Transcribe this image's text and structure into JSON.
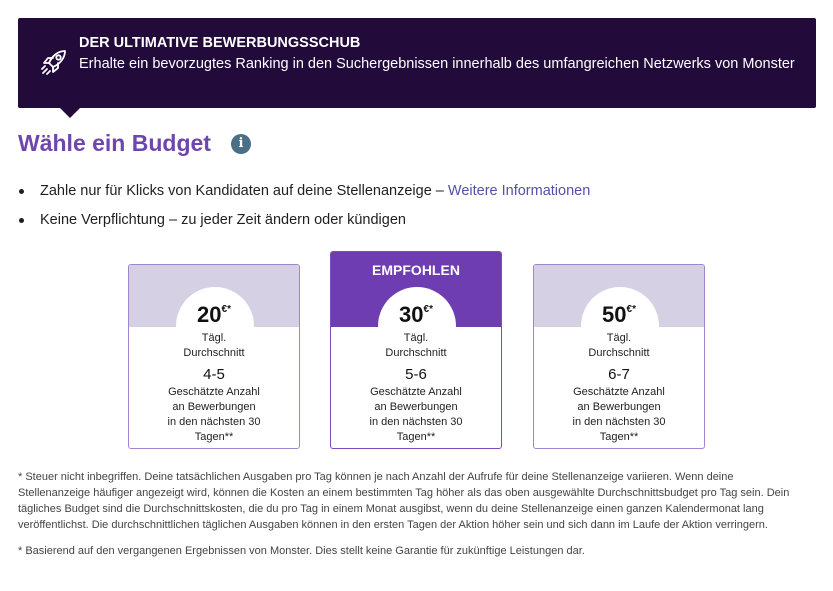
{
  "banner": {
    "icon": "rocket-icon",
    "title": "DER ULTIMATIVE BEWERBUNGSSCHUB",
    "subtitle": "Erhalte ein bevorzugtes Ranking in den Suchergebnissen innerhalb des umfangreichen Netzwerks von Monster",
    "background": "#220a3b"
  },
  "heading": {
    "title": "Wähle ein Budget",
    "info_icon": "info-icon",
    "info_glyph": "i",
    "color": "#6e46ae"
  },
  "bullets": {
    "item1_text": "Zahle nur für Klicks von Kandidaten auf deine Stellenanzeige – ",
    "item1_link": "Weitere Informationen",
    "item2_text": "Keine Verpflichtung – zu jeder Zeit ändern oder kündigen"
  },
  "cards": [
    {
      "price": "20",
      "currency": "€",
      "marker": "*",
      "daily_label_1": "Tägl.",
      "daily_label_2": "Durchschnitt",
      "range": "4-5",
      "est_line_1": "Geschätzte Anzahl",
      "est_line_2": "an Bewerbungen",
      "period_line_1": "in den nächsten 30",
      "period_line_2": "Tagen**"
    },
    {
      "badge": "EMPFOHLEN",
      "price": "30",
      "currency": "€",
      "marker": "*",
      "daily_label_1": "Tägl.",
      "daily_label_2": "Durchschnitt",
      "range": "5-6",
      "est_line_1": "Geschätzte Anzahl",
      "est_line_2": "an Bewerbungen",
      "period_line_1": "in den nächsten 30",
      "period_line_2": "Tagen**"
    },
    {
      "price": "50",
      "currency": "€",
      "marker": "*",
      "daily_label_1": "Tägl.",
      "daily_label_2": "Durchschnitt",
      "range": "6-7",
      "est_line_1": "Geschätzte Anzahl",
      "est_line_2": "an Bewerbungen",
      "period_line_1": "in den nächsten 30",
      "period_line_2": "Tagen**"
    }
  ],
  "notes": {
    "tax": "* Steuer nicht inbegriffen. Deine tatsächlichen Ausgaben pro Tag können je nach Anzahl der Aufrufe für deine Stellenanzeige variieren. Wenn deine Stellenanzeige häufiger angezeigt wird, können die Kosten an einem bestimmten Tag höher als das oben ausgewählte Durchschnittsbudget pro Tag sein. Dein tägliches Budget sind die Durchschnittskosten, die du pro Tag in einem Monat ausgibst, wenn du deine Stellenanzeige einen ganzen Kalendermonat lang veröffentlichst. Die durchschnittlichen täglichen Ausgaben können in den ersten Tagen der Aktion höher sein und sich dann im Laufe der Aktion verringern.",
    "basis": "* Basierend auf den vergangenen Ergebnissen von Monster. Dies stellt keine Garantie für zukünftige Leistungen dar."
  },
  "colors": {
    "accent": "#6e3db1",
    "card_top": "#d6d0e4",
    "link": "#5451a8"
  }
}
